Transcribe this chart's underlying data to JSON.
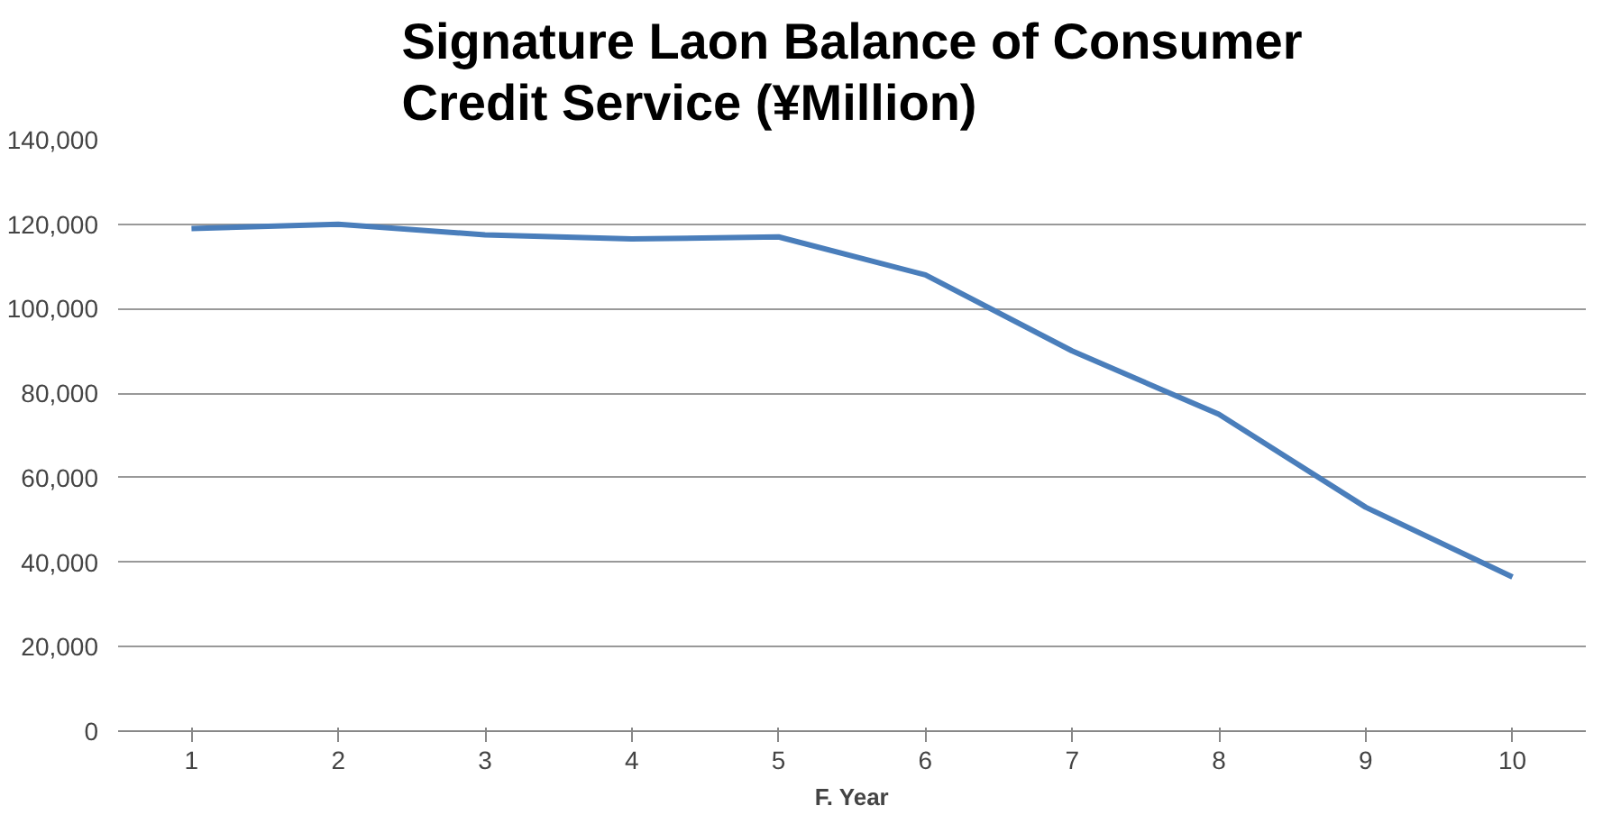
{
  "chart_data": {
    "type": "line",
    "title": "Signature Laon Balance of Consumer\nCredit Service (¥Million)",
    "xlabel": "F. Year",
    "categories": [
      "1",
      "2",
      "3",
      "4",
      "5",
      "6",
      "7",
      "8",
      "9",
      "10"
    ],
    "series": [
      {
        "color": "#4a7ebb",
        "values": [
          119000,
          120000,
          117500,
          116500,
          117000,
          108000,
          90000,
          75000,
          53000,
          36500
        ]
      }
    ],
    "ylim": [
      0,
      140000
    ],
    "yticks": [
      {
        "value": 0,
        "label": "0"
      },
      {
        "value": 20000,
        "label": "20,000"
      },
      {
        "value": 40000,
        "label": "40,000"
      },
      {
        "value": 60000,
        "label": "60,000"
      },
      {
        "value": 80000,
        "label": "80,000"
      },
      {
        "value": 100000,
        "label": "100,000"
      },
      {
        "value": 120000,
        "label": "120,000"
      },
      {
        "value": 140000,
        "label": "140,000"
      }
    ],
    "grid": "y",
    "marker": "none",
    "line_style": "solid"
  }
}
